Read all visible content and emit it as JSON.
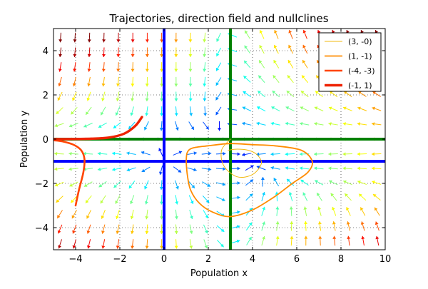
{
  "chart_data": {
    "type": "line",
    "title": "Trajectories, direction field and nullclines",
    "xlabel": "Population x",
    "ylabel": "Population y",
    "xlim": [
      -5,
      10
    ],
    "ylim": [
      -5,
      5
    ],
    "xticks": [
      -4,
      -2,
      0,
      2,
      4,
      6,
      8,
      10
    ],
    "yticks": [
      -4,
      -2,
      0,
      2,
      4
    ],
    "grid": true,
    "legend_position": "top-right",
    "colors": {
      "nullcline_x": "#0000ff",
      "nullcline_y": "#008000",
      "arrow_low": "#0000cc",
      "arrow_high": "#ffff00"
    },
    "nullclines": {
      "vertical_blue": 0,
      "vertical_green": 3,
      "horizontal_green": 0,
      "horizontal_blue": -1
    },
    "series": [
      {
        "name": "(3, -0)",
        "color": "#f2b90f",
        "linewidth": 1,
        "points": [
          [
            3,
            -0.0
          ],
          [
            2.6,
            -0.5
          ],
          [
            2.7,
            -1.2
          ],
          [
            3.3,
            -1.7
          ],
          [
            4,
            -1.6
          ],
          [
            4.4,
            -1.1
          ],
          [
            4.2,
            -0.7
          ],
          [
            3.8,
            -0.5
          ],
          [
            3.3,
            -0.45
          ],
          [
            2.9,
            -0.5
          ]
        ]
      },
      {
        "name": "(1, -1)",
        "color": "#ff8c00",
        "linewidth": 1.8,
        "points": [
          [
            1,
            -1.0
          ],
          [
            1.05,
            -0.6
          ],
          [
            1.3,
            -0.4
          ],
          [
            2,
            -0.3
          ],
          [
            3,
            -0.2
          ],
          [
            4,
            -0.25
          ],
          [
            5,
            -0.3
          ],
          [
            6.2,
            -0.5
          ],
          [
            6.7,
            -1.0
          ],
          [
            6.5,
            -1.5
          ],
          [
            5.8,
            -2.0
          ],
          [
            5,
            -2.6
          ],
          [
            4,
            -3.2
          ],
          [
            3,
            -3.5
          ],
          [
            2.2,
            -3.3
          ],
          [
            1.6,
            -2.9
          ],
          [
            1.2,
            -2.3
          ],
          [
            1.05,
            -1.6
          ],
          [
            1,
            -1.0
          ]
        ]
      },
      {
        "name": "(-4, -3)",
        "color": "#ff4500",
        "linewidth": 2.6,
        "points": [
          [
            -4,
            -3.0
          ],
          [
            -3.85,
            -2.3
          ],
          [
            -3.65,
            -1.5
          ],
          [
            -3.6,
            -0.9
          ],
          [
            -3.75,
            -0.5
          ],
          [
            -4.1,
            -0.25
          ],
          [
            -4.6,
            -0.1
          ],
          [
            -5,
            -0.05
          ]
        ]
      },
      {
        "name": "(-1, 1)",
        "color": "#ee2200",
        "linewidth": 3.4,
        "points": [
          [
            -1,
            1.0
          ],
          [
            -1.3,
            0.6
          ],
          [
            -1.8,
            0.25
          ],
          [
            -2.5,
            0.07
          ],
          [
            -3.3,
            0.02
          ],
          [
            -4.2,
            0.005
          ],
          [
            -5,
            0.0
          ]
        ]
      }
    ]
  }
}
